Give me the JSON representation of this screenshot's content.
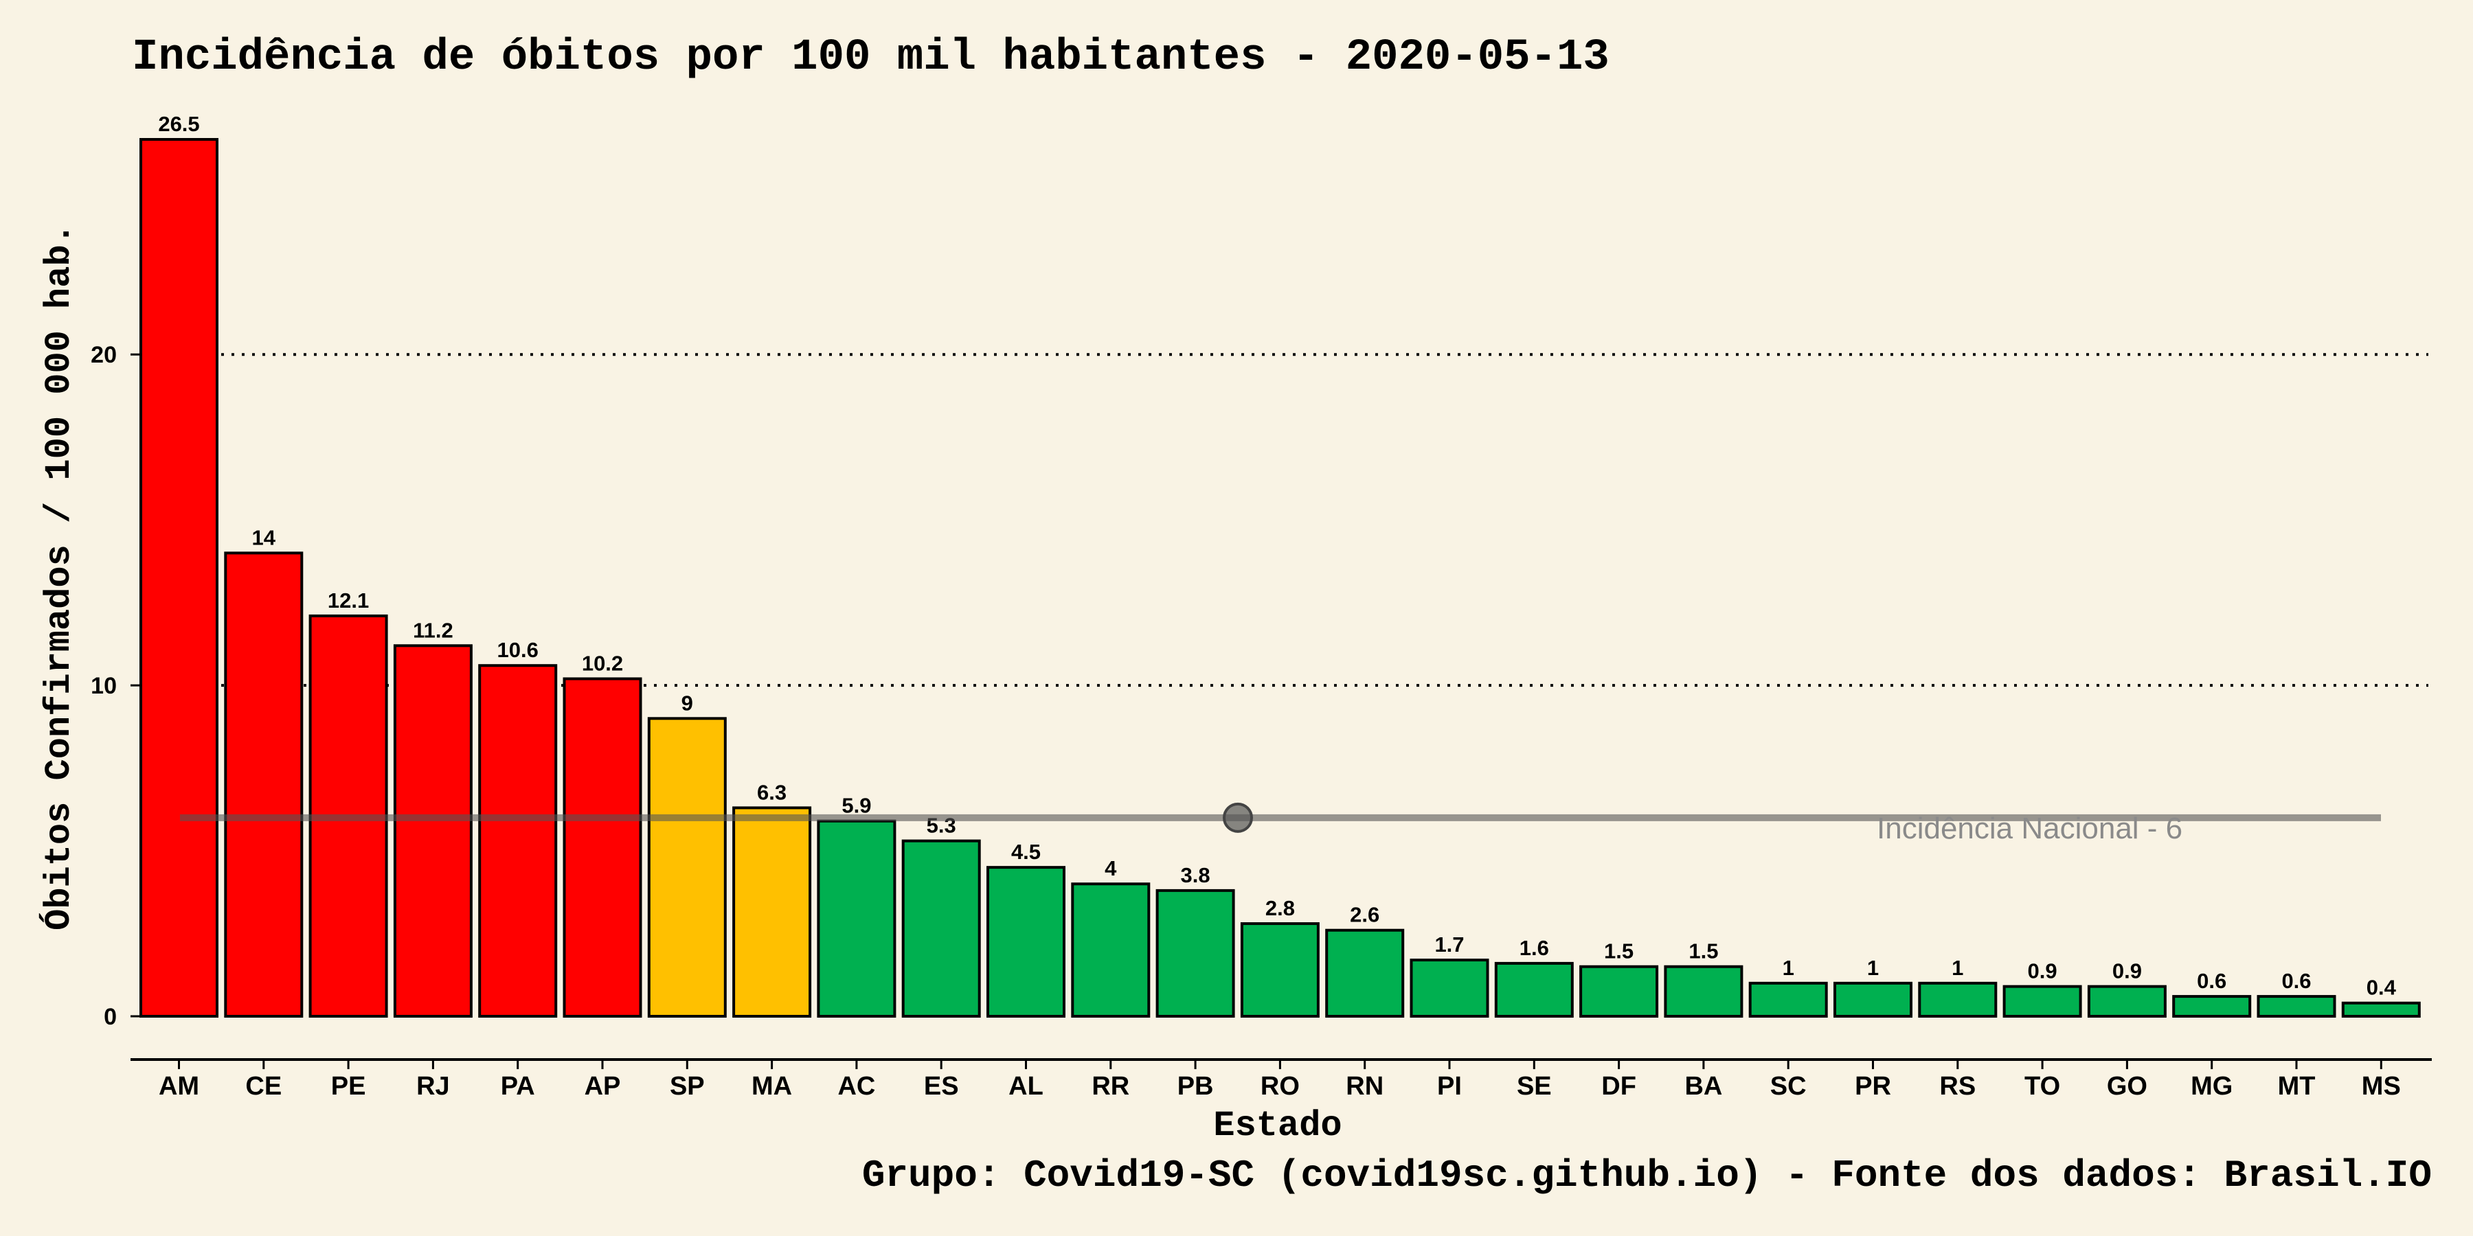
{
  "chart_data": {
    "type": "bar",
    "title": "Incidência de óbitos por 100 mil habitantes -  2020-05-13",
    "xlabel": "Estado",
    "ylabel": "Óbitos Confirmados / 100 000 hab.",
    "ylim": [
      0,
      26.5
    ],
    "yticks": [
      0,
      10,
      20
    ],
    "grid": "horizontal-dotted",
    "categories": [
      "AM",
      "CE",
      "PE",
      "RJ",
      "PA",
      "AP",
      "SP",
      "MA",
      "AC",
      "ES",
      "AL",
      "RR",
      "PB",
      "RO",
      "RN",
      "PI",
      "SE",
      "DF",
      "BA",
      "SC",
      "PR",
      "RS",
      "TO",
      "GO",
      "MG",
      "MT",
      "MS"
    ],
    "values": [
      26.5,
      14,
      12.1,
      11.2,
      10.6,
      10.2,
      9,
      6.3,
      5.9,
      5.3,
      4.5,
      4,
      3.8,
      2.8,
      2.6,
      1.7,
      1.6,
      1.5,
      1.5,
      1,
      1,
      1,
      0.9,
      0.9,
      0.6,
      0.6,
      0.4
    ],
    "value_labels": [
      "26.5",
      "14",
      "12.1",
      "11.2",
      "10.6",
      "10.2",
      "9",
      "6.3",
      "5.9",
      "5.3",
      "4.5",
      "4",
      "3.8",
      "2.8",
      "2.6",
      "1.7",
      "1.6",
      "1.5",
      "1.5",
      "1",
      "1",
      "1",
      "0.9",
      "0.9",
      "0.6",
      "0.6",
      "0.4"
    ],
    "bar_colors": [
      "#ff0000",
      "#ff0000",
      "#ff0000",
      "#ff0000",
      "#ff0000",
      "#ff0000",
      "#ffc000",
      "#ffc000",
      "#00b050",
      "#00b050",
      "#00b050",
      "#00b050",
      "#00b050",
      "#00b050",
      "#00b050",
      "#00b050",
      "#00b050",
      "#00b050",
      "#00b050",
      "#00b050",
      "#00b050",
      "#00b050",
      "#00b050",
      "#00b050",
      "#00b050",
      "#00b050",
      "#00b050"
    ],
    "reference_line": {
      "value": 6,
      "label": "Incidência Nacional -  6",
      "color": "#555555"
    },
    "caption": "Grupo: Covid19-SC (covid19sc.github.io)   -  Fonte dos dados: Brasil.IO"
  },
  "colors": {
    "background": "#f9f3e4",
    "red": "#ff0000",
    "yellow": "#ffc000",
    "green": "#00b050",
    "text": "#000000"
  }
}
